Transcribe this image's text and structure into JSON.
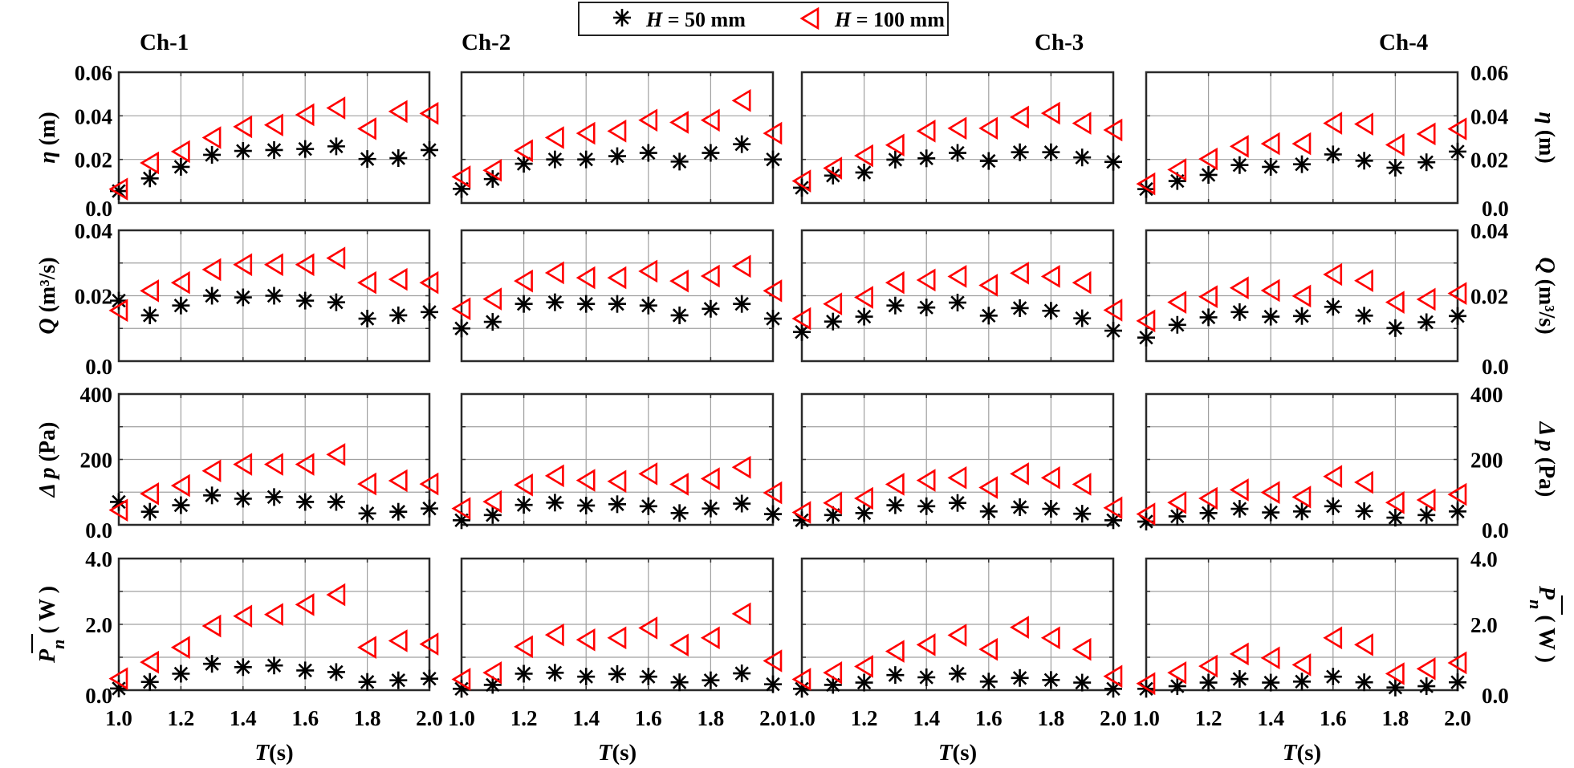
{
  "chart_data": {
    "type": "scatter",
    "layout": "4 rows x 4 columns of small-multiple panels",
    "legend": {
      "placement": "top-center",
      "entries": [
        {
          "marker": "asterisk",
          "label_var": "H",
          "label_rest": " = 50 mm",
          "color": "#000000"
        },
        {
          "marker": "triangle-left",
          "label_var": "H",
          "label_rest": " = 100 mm",
          "color": "#ff0000"
        }
      ]
    },
    "columns": [
      "Ch-1",
      "Ch-2",
      "Ch-3",
      "Ch-4"
    ],
    "x": [
      1.0,
      1.1,
      1.2,
      1.3,
      1.4,
      1.5,
      1.6,
      1.7,
      1.8,
      1.9,
      2.0
    ],
    "xlabel_var": "T",
    "xlabel_unit": "(s)",
    "xlim": [
      1.0,
      2.0
    ],
    "xticks": [
      1.0,
      1.2,
      1.4,
      1.6,
      1.8,
      2.0
    ],
    "xtick_labels": [
      "1.0",
      "1.2",
      "1.4",
      "1.6",
      "1.8",
      "2.0"
    ],
    "grid": true,
    "rows": [
      {
        "key": "eta",
        "ylabel_var": "η",
        "ylabel_unit": " (m)",
        "ylim": [
          0,
          0.06
        ],
        "ygrid_step": 0.02,
        "yticks": [
          0.0,
          0.02,
          0.04,
          0.06
        ],
        "ytick_labels": [
          "0.0",
          "0.02",
          "0.04",
          "0.06"
        ],
        "series": [
          {
            "name": "H = 50 mm",
            "values": [
              [
                0.0055,
                0.0113,
                0.0166,
                0.0221,
                0.0239,
                0.0243,
                0.0248,
                0.026,
                0.0202,
                0.0206,
                0.0243
              ],
              [
                0.0065,
                0.011,
                0.018,
                0.02,
                0.02,
                0.0215,
                0.023,
                0.019,
                0.023,
                0.027,
                0.02
              ],
              [
                0.007,
                0.0126,
                0.014,
                0.0199,
                0.0205,
                0.023,
                0.0193,
                0.0233,
                0.0233,
                0.0209,
                0.0189
              ],
              [
                0.0064,
                0.0101,
                0.0129,
                0.0174,
                0.0166,
                0.0178,
                0.0223,
                0.0194,
                0.0162,
                0.0187,
                0.0236
              ]
            ]
          },
          {
            "name": "H = 100 mm",
            "values": [
              [
                0.0064,
                0.0184,
                0.0236,
                0.03,
                0.035,
                0.0358,
                0.0405,
                0.0436,
                0.0341,
                0.042,
                0.0411
              ],
              [
                0.012,
                0.015,
                0.024,
                0.03,
                0.032,
                0.033,
                0.038,
                0.037,
                0.038,
                0.047,
                0.032
              ],
              [
                0.0101,
                0.016,
                0.0217,
                0.0266,
                0.033,
                0.0343,
                0.0343,
                0.0394,
                0.0412,
                0.0366,
                0.0335
              ],
              [
                0.0088,
                0.0153,
                0.0202,
                0.026,
                0.0272,
                0.0272,
                0.0366,
                0.0362,
                0.0267,
                0.0317,
                0.034
              ]
            ]
          }
        ]
      },
      {
        "key": "Q",
        "ylabel_var": "Q",
        "ylabel_unit": " (m³/s)",
        "ylim": [
          0,
          0.04
        ],
        "ygrid_step": 0.01,
        "yticks": [
          0.0,
          0.02,
          0.04
        ],
        "ytick_labels": [
          "0.0",
          "0.02",
          "0.04"
        ],
        "series": [
          {
            "name": "H = 50 mm",
            "values": [
              [
                0.0185,
                0.014,
                0.017,
                0.02,
                0.0195,
                0.02,
                0.0185,
                0.018,
                0.013,
                0.014,
                0.015
              ],
              [
                0.01,
                0.012,
                0.0175,
                0.018,
                0.0175,
                0.0175,
                0.017,
                0.014,
                0.016,
                0.0175,
                0.013
              ],
              [
                0.0089,
                0.0121,
                0.0136,
                0.017,
                0.0164,
                0.0179,
                0.0139,
                0.0162,
                0.0154,
                0.0131,
                0.0093
              ],
              [
                0.0072,
                0.0111,
                0.0134,
                0.015,
                0.0136,
                0.0138,
                0.0166,
                0.0139,
                0.0101,
                0.0119,
                0.0138
              ]
            ]
          },
          {
            "name": "H = 100 mm",
            "values": [
              [
                0.0155,
                0.0215,
                0.024,
                0.028,
                0.0295,
                0.0295,
                0.0295,
                0.0315,
                0.024,
                0.025,
                0.024
              ],
              [
                0.016,
                0.019,
                0.0245,
                0.027,
                0.0255,
                0.0255,
                0.0275,
                0.0245,
                0.026,
                0.029,
                0.0215
              ],
              [
                0.013,
                0.0175,
                0.0195,
                0.024,
                0.0248,
                0.0259,
                0.0232,
                0.0269,
                0.0259,
                0.024,
                0.0156
              ],
              [
                0.0123,
                0.018,
                0.0197,
                0.0224,
                0.0216,
                0.0199,
                0.0265,
                0.0246,
                0.018,
                0.0189,
                0.0207
              ]
            ]
          }
        ]
      },
      {
        "key": "dp",
        "ylabel_var": "Δ p",
        "ylabel_unit": " (Pa)",
        "ylim": [
          0,
          400
        ],
        "ygrid_step": 100,
        "yticks": [
          0,
          200,
          400
        ],
        "ytick_labels": [
          "0.0",
          "200",
          "400"
        ],
        "series": [
          {
            "name": "H = 50 mm",
            "values": [
              [
                70,
                40,
                60,
                90,
                80,
                85,
                70,
                70,
                35,
                40,
                50
              ],
              [
                14,
                30,
                61,
                68,
                59,
                63,
                57,
                36,
                50,
                65,
                33
              ],
              [
                14,
                30,
                36,
                60,
                57,
                67,
                41,
                54,
                49,
                34,
                14
              ],
              [
                10,
                26,
                36,
                49,
                38,
                41,
                57,
                42,
                22,
                30,
                41
              ]
            ]
          },
          {
            "name": "H = 100 mm",
            "values": [
              [
                45,
                95,
                120,
                165,
                185,
                185,
                185,
                215,
                125,
                135,
                125
              ],
              [
                50,
                71,
                122,
                150,
                136,
                133,
                156,
                124,
                141,
                176,
                98
              ],
              [
                38,
                67,
                81,
                124,
                136,
                144,
                114,
                156,
                144,
                124,
                52
              ],
              [
                33,
                68,
                81,
                107,
                99,
                85,
                148,
                130,
                68,
                76,
                93
              ]
            ]
          }
        ]
      },
      {
        "key": "Pn",
        "ylabel_var": "P",
        "ylabel_sub": "n",
        "ylabel_unit": " ( W )",
        "ylim": [
          0,
          4.0
        ],
        "ygrid_step": 1.0,
        "yticks": [
          0.0,
          2.0,
          4.0
        ],
        "ytick_labels": [
          "0.0",
          "2.0",
          "4.0"
        ],
        "series": [
          {
            "name": "H = 50 mm",
            "values": [
              [
                0.05,
                0.25,
                0.5,
                0.8,
                0.7,
                0.75,
                0.6,
                0.55,
                0.25,
                0.3,
                0.35
              ],
              [
                0.04,
                0.16,
                0.5,
                0.53,
                0.41,
                0.49,
                0.41,
                0.24,
                0.3,
                0.51,
                0.18
              ],
              [
                0.04,
                0.16,
                0.23,
                0.46,
                0.39,
                0.5,
                0.26,
                0.37,
                0.31,
                0.23,
                0.04
              ],
              [
                0.04,
                0.12,
                0.23,
                0.34,
                0.23,
                0.26,
                0.41,
                0.24,
                0.08,
                0.12,
                0.24
              ]
            ]
          },
          {
            "name": "H = 100 mm",
            "values": [
              [
                0.35,
                0.85,
                1.3,
                1.95,
                2.25,
                2.3,
                2.6,
                2.9,
                1.3,
                1.5,
                1.4
              ],
              [
                0.33,
                0.53,
                1.32,
                1.68,
                1.53,
                1.59,
                1.89,
                1.37,
                1.59,
                2.32,
                0.89
              ],
              [
                0.33,
                0.53,
                0.72,
                1.18,
                1.38,
                1.67,
                1.24,
                1.91,
                1.59,
                1.24,
                0.42
              ],
              [
                0.2,
                0.53,
                0.73,
                1.1,
                0.98,
                0.77,
                1.59,
                1.38,
                0.5,
                0.65,
                0.83
              ]
            ]
          }
        ]
      }
    ]
  }
}
